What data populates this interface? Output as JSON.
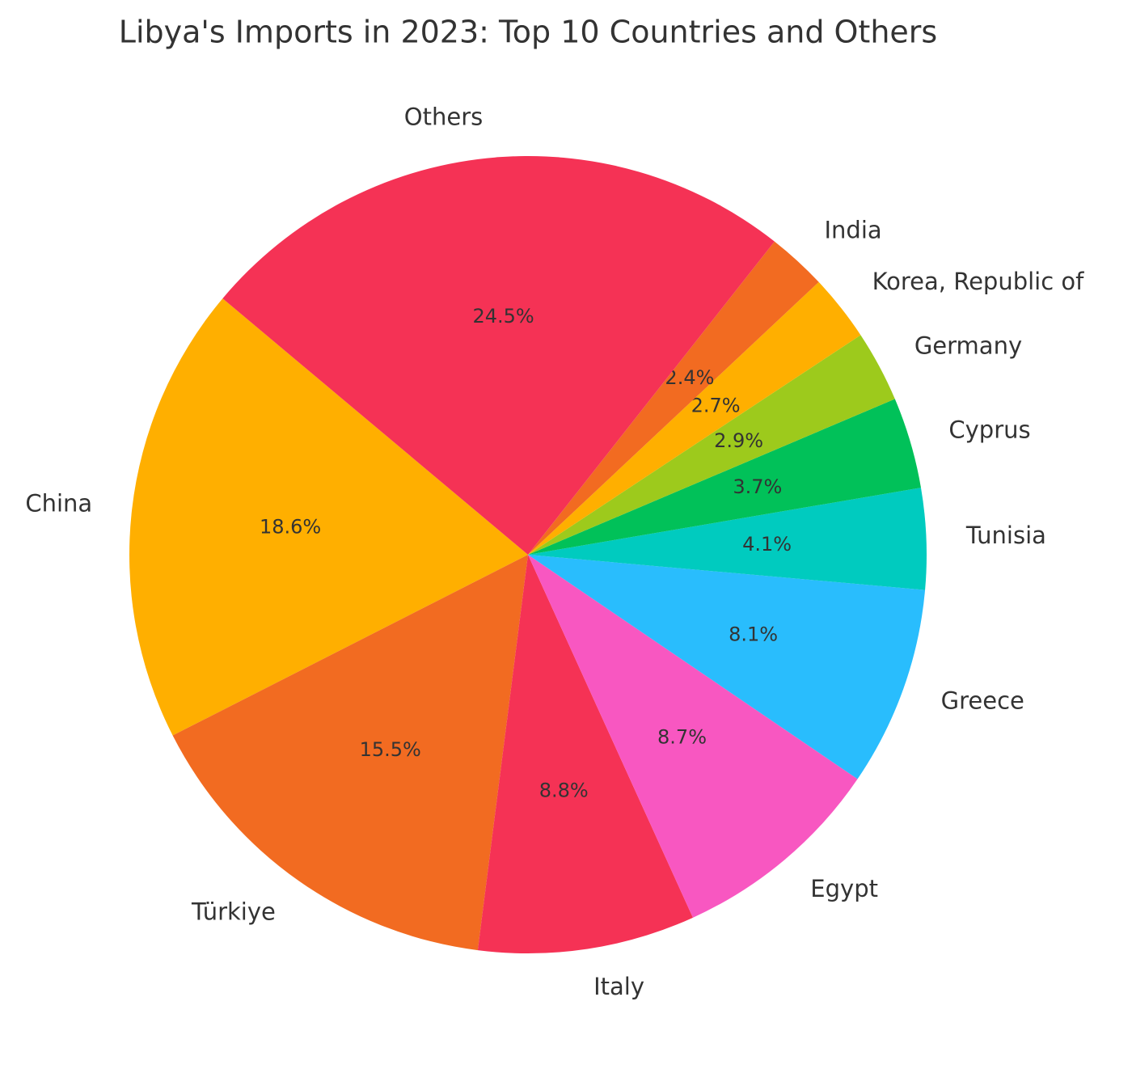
{
  "chart_data": {
    "type": "pie",
    "title": "Libya's Imports in 2023: Top 10 Countries and Others",
    "categories": [
      "China",
      "Türkiye",
      "Italy",
      "Egypt",
      "Greece",
      "Tunisia",
      "Cyprus",
      "Germany",
      "Korea, Republic of",
      "India",
      "Others"
    ],
    "values": [
      18.6,
      15.5,
      8.8,
      8.7,
      8.1,
      4.1,
      3.7,
      2.9,
      2.7,
      2.4,
      24.5
    ],
    "value_labels": [
      "18.6%",
      "15.5%",
      "8.8%",
      "8.7%",
      "8.1%",
      "4.1%",
      "3.7%",
      "2.9%",
      "2.7%",
      "2.4%",
      "24.5%"
    ],
    "colors": [
      "#FFAF00",
      "#F26B21",
      "#F53255",
      "#F857C1",
      "#29BDFD",
      "#00CBBF",
      "#01C159",
      "#9DCA1C",
      "#FFAF00",
      "#F26B21",
      "#F53255"
    ],
    "start_angle": 140,
    "counterclockwise": true
  }
}
